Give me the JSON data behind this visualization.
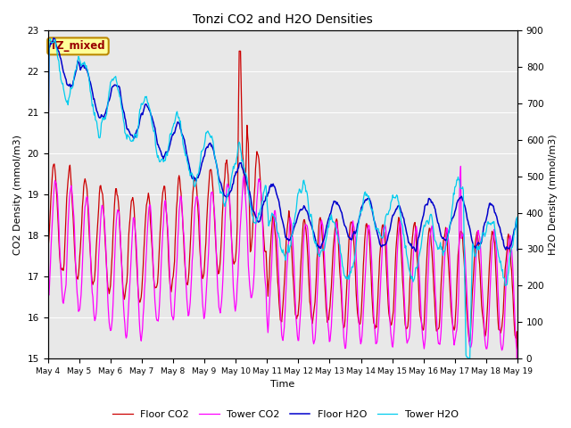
{
  "title": "Tonzi CO2 and H2O Densities",
  "xlabel": "Time",
  "ylabel_left": "CO2 Density (mmol/m3)",
  "ylabel_right": "H2O Density (mmol/m3)",
  "co2_ylim": [
    15.0,
    23.0
  ],
  "h2o_ylim": [
    0,
    900
  ],
  "annotation_text": "TZ_mixed",
  "annotation_bg": "#ffff99",
  "annotation_border": "#bb8800",
  "colors": {
    "floor_co2": "#cc0000",
    "tower_co2": "#ff00ff",
    "floor_h2o": "#0000cc",
    "tower_h2o": "#00ccee"
  },
  "legend_labels": [
    "Floor CO2",
    "Tower CO2",
    "Floor H2O",
    "Tower H2O"
  ],
  "x_tick_labels": [
    "May 4",
    "May 5",
    "May 6",
    "May 7",
    "May 8",
    "May 9",
    "May 10",
    "May 11",
    "May 12",
    "May 13",
    "May 14",
    "May 15",
    "May 16",
    "May 17",
    "May 18",
    "May 19"
  ],
  "bg_color": "#e8e8e8",
  "figsize": [
    6.4,
    4.8
  ],
  "dpi": 100
}
